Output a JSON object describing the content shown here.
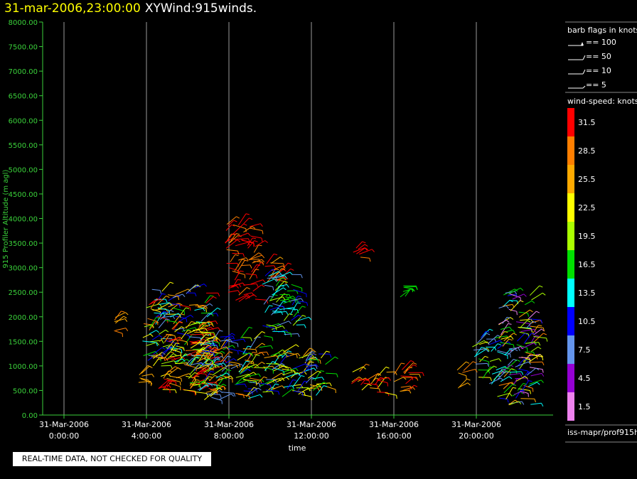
{
  "title": {
    "date": "31-mar-2006,23:00:00",
    "name": "XYWind:915winds."
  },
  "notice": "REAL-TIME DATA, NOT CHECKED FOR QUALITY",
  "footer": "iss-mapr/prof915h",
  "barb_legend": {
    "title": "barb flags in knots",
    "items": [
      "== 100",
      "== 50",
      "== 10",
      "== 5"
    ]
  },
  "speed_legend": {
    "title": "wind-speed: knots",
    "levels": [
      {
        "label": "31.5",
        "color": "#ff0000"
      },
      {
        "label": "28.5",
        "color": "#ff7f00"
      },
      {
        "label": "25.5",
        "color": "#ffaa00"
      },
      {
        "label": "22.5",
        "color": "#ffff00"
      },
      {
        "label": "19.5",
        "color": "#aaff00"
      },
      {
        "label": "16.5",
        "color": "#00e000"
      },
      {
        "label": "13.5",
        "color": "#00ffff"
      },
      {
        "label": "10.5",
        "color": "#0000ff"
      },
      {
        "label": "7.5",
        "color": "#6495ed"
      },
      {
        "label": "4.5",
        "color": "#9400d3"
      },
      {
        "label": "1.5",
        "color": "#ee82ee"
      }
    ]
  },
  "chart_data": {
    "type": "scatter",
    "ylabel": "915 Profiler Altitude (m agl)",
    "xlabel": "time",
    "ylim": [
      0,
      8000
    ],
    "xlim_hours": [
      -0.2,
      23.0
    ],
    "yticks": [
      "0.00",
      "500.00",
      "1000.00",
      "1500.00",
      "2000.00",
      "2500.00",
      "3000.00",
      "3500.00",
      "4000.00",
      "4500.00",
      "5000.00",
      "5500.00",
      "6000.00",
      "6500.00",
      "7000.00",
      "7500.00",
      "8000.00"
    ],
    "xticks": [
      {
        "hour": 0,
        "date": "31-Mar-2006",
        "time": "0:00:00"
      },
      {
        "hour": 4,
        "date": "31-Mar-2006",
        "time": "4:00:00"
      },
      {
        "hour": 8,
        "date": "31-Mar-2006",
        "time": "8:00:00"
      },
      {
        "hour": 12,
        "date": "31-Mar-2006",
        "time": "12:00:00"
      },
      {
        "hour": 16,
        "date": "31-Mar-2006",
        "time": "16:00:00"
      },
      {
        "hour": 20,
        "date": "31-Mar-2006",
        "time": "20:00:00"
      }
    ],
    "grid": "vertical",
    "clusters": [
      {
        "t": [
          2.4,
          2.6
        ],
        "alt": [
          1700,
          2000
        ],
        "speed": 27,
        "spread": 2
      },
      {
        "t": [
          3.6,
          3.8
        ],
        "alt": [
          650,
          950
        ],
        "speed": 27,
        "spread": 2
      },
      {
        "t": [
          3.8,
          7.0
        ],
        "alt": [
          1000,
          2600
        ],
        "speed": 20,
        "spread": 14
      },
      {
        "t": [
          4.5,
          7.2
        ],
        "alt": [
          500,
          1800
        ],
        "speed": 28,
        "spread": 8
      },
      {
        "t": [
          6.0,
          9.5
        ],
        "alt": [
          300,
          1600
        ],
        "speed": 18,
        "spread": 12
      },
      {
        "t": [
          7.8,
          9.3
        ],
        "alt": [
          2300,
          3900
        ],
        "speed": 31,
        "spread": 4
      },
      {
        "t": [
          9.4,
          10.6
        ],
        "alt": [
          2600,
          3100
        ],
        "speed": 29,
        "spread": 3
      },
      {
        "t": [
          9.6,
          11.3
        ],
        "alt": [
          1600,
          2900
        ],
        "speed": 13,
        "spread": 7
      },
      {
        "t": [
          9.5,
          12.8
        ],
        "alt": [
          350,
          1300
        ],
        "speed": 17,
        "spread": 10
      },
      {
        "t": [
          14.0,
          14.6
        ],
        "alt": [
          3200,
          3400
        ],
        "speed": 31,
        "spread": 2
      },
      {
        "t": [
          13.8,
          15.6
        ],
        "alt": [
          450,
          900
        ],
        "speed": 27,
        "spread": 6
      },
      {
        "t": [
          15.6,
          16.9
        ],
        "alt": [
          450,
          950
        ],
        "speed": 30,
        "spread": 5
      },
      {
        "t": [
          16.3,
          16.6
        ],
        "alt": [
          2350,
          2650
        ],
        "speed": 17,
        "spread": 1
      },
      {
        "t": [
          19.0,
          19.4
        ],
        "alt": [
          500,
          1000
        ],
        "speed": 27,
        "spread": 2
      },
      {
        "t": [
          19.8,
          21.2
        ],
        "alt": [
          600,
          1600
        ],
        "speed": 15,
        "spread": 8
      },
      {
        "t": [
          21.0,
          22.8
        ],
        "alt": [
          200,
          2500
        ],
        "speed": 14,
        "spread": 14
      }
    ]
  }
}
